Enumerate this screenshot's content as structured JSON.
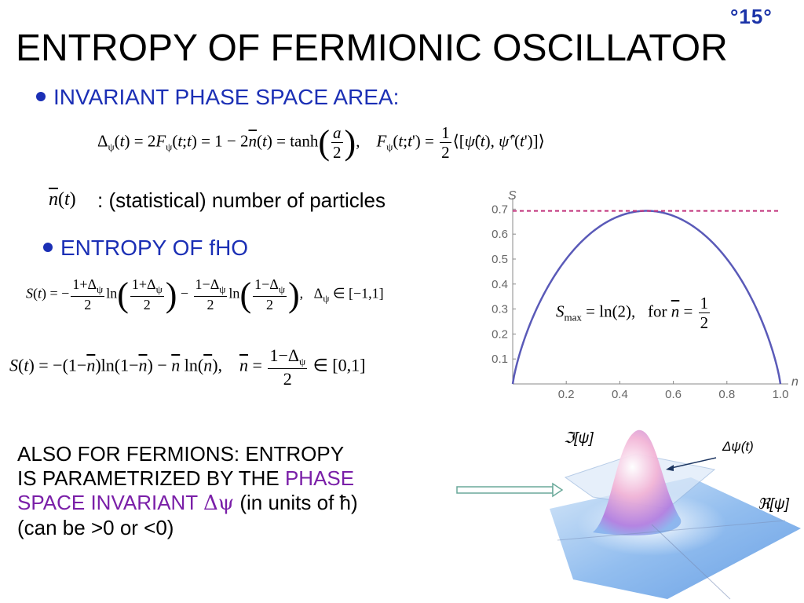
{
  "slide_number": "°15°",
  "title": "ENTROPY OF FERMIONIC OSCILLATOR",
  "bullet1": "INVARIANT PHASE SPACE AREA:",
  "bullet2": "ENTROPY OF fHO",
  "nbar_label": ": (statistical) number of particles",
  "bottom_text": {
    "line1": "ALSO FOR FERMIONS: ENTROPY",
    "line2": "IS PARAMETRIZED BY THE ",
    "line2_highlight": "PHASE",
    "line3_highlight": "SPACE INVARIANT ",
    "delta_psi": "Δψ",
    "line3_rest": " (in units of ħ)",
    "line4": "(can be >0 or <0)"
  },
  "equations": {
    "eq1": "Δψ(t) = 2Fψ(t;t) = 1 − 2n̄(t) = tanh(a/2),   Fψ(t;t') = ½⟨[ψ̂(t), ψ̂⁺(t')]⟩",
    "eq2": "S(t) = −(1+Δψ)/2 ln((1+Δψ)/2) − (1−Δψ)/2 ln((1−Δψ)/2),   Δψ ∈ [−1,1]",
    "eq3": "S(t) = −(1−n̄)ln(1−n̄) − n̄ ln(n̄),   n̄ = (1−Δψ)/2 ∈ [0,1]",
    "smax": "Smax = ln(2),   for n̄ = 1/2"
  },
  "chart_data": {
    "type": "line",
    "xlabel": "n",
    "ylabel": "S",
    "xlim": [
      0,
      1
    ],
    "ylim": [
      0,
      0.72
    ],
    "x_ticks": [
      "0.2",
      "0.4",
      "0.6",
      "0.8",
      "1.0"
    ],
    "y_ticks": [
      "0.1",
      "0.2",
      "0.3",
      "0.4",
      "0.5",
      "0.6",
      "0.7"
    ],
    "series": [
      {
        "function": "S = -(1-n)ln(1-n) - n ln(n)",
        "color": "#5a5ab8",
        "style": "solid",
        "x": [
          0,
          0.05,
          0.1,
          0.2,
          0.3,
          0.4,
          0.5,
          0.6,
          0.7,
          0.8,
          0.9,
          0.95,
          1
        ],
        "y": [
          0,
          0.199,
          0.325,
          0.5,
          0.611,
          0.673,
          0.693,
          0.673,
          0.611,
          0.5,
          0.325,
          0.199,
          0
        ]
      },
      {
        "function": "S = ln(2)",
        "color": "#c0307a",
        "style": "dashed",
        "x": [
          0,
          1
        ],
        "y": [
          0.693,
          0.693
        ]
      }
    ]
  },
  "figure_labels": {
    "imag": "ℑ[ψ]",
    "real": "ℜ[ψ]",
    "delta": "Δψ(t)"
  },
  "colors": {
    "accent": "#1b2fb5",
    "highlight": "#7a1fa8"
  }
}
